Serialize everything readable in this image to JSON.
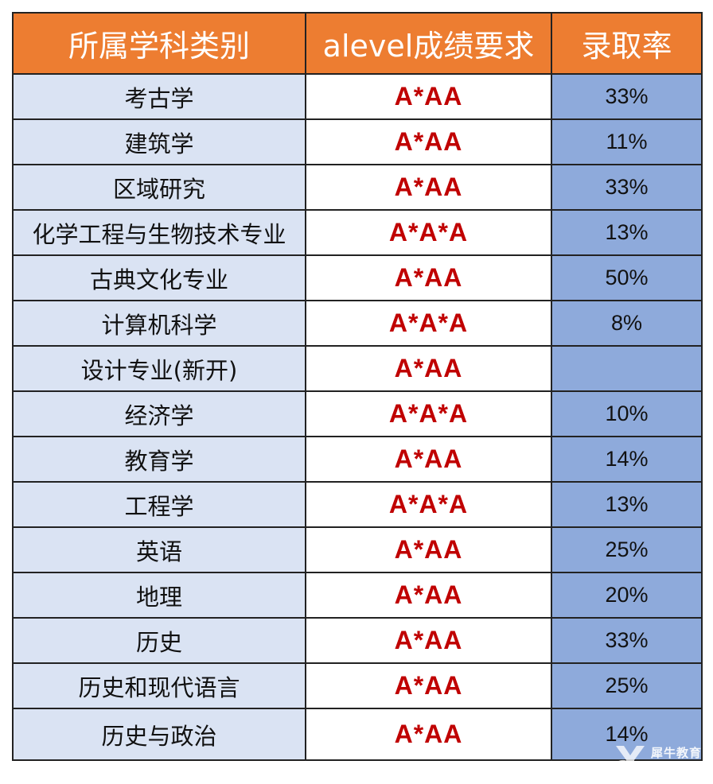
{
  "table": {
    "headers": [
      "所属学科类别",
      "alevel成绩要求",
      "录取率"
    ],
    "rows": [
      {
        "subject": "考古学",
        "grade": "A*AA",
        "rate": "33%"
      },
      {
        "subject": "建筑学",
        "grade": "A*AA",
        "rate": "11%"
      },
      {
        "subject": "区域研究",
        "grade": "A*AA",
        "rate": "33%"
      },
      {
        "subject": "化学工程与生物技术专业",
        "grade": "A*A*A",
        "rate": "13%"
      },
      {
        "subject": "古典文化专业",
        "grade": "A*AA",
        "rate": "50%"
      },
      {
        "subject": "计算机科学",
        "grade": "A*A*A",
        "rate": "8%"
      },
      {
        "subject": "设计专业(新开)",
        "grade": "A*AA",
        "rate": ""
      },
      {
        "subject": "经济学",
        "grade": "A*A*A",
        "rate": "10%"
      },
      {
        "subject": "教育学",
        "grade": "A*AA",
        "rate": "14%"
      },
      {
        "subject": "工程学",
        "grade": "A*A*A",
        "rate": "13%"
      },
      {
        "subject": "英语",
        "grade": "A*AA",
        "rate": "25%"
      },
      {
        "subject": "地理",
        "grade": "A*AA",
        "rate": "20%"
      },
      {
        "subject": "历史",
        "grade": "A*AA",
        "rate": "33%"
      },
      {
        "subject": "历史和现代语言",
        "grade": "A*AA",
        "rate": "25%"
      },
      {
        "subject": "历史与政治",
        "grade": "A*AA",
        "rate": "14%"
      }
    ]
  },
  "watermark": {
    "logo": "犀牛教育",
    "icon": "rhino-logo-icon"
  },
  "colors": {
    "header_bg": "#ed7d31",
    "subject_bg": "#dae3f3",
    "rate_bg": "#8eaadb",
    "grade_text": "#c00000"
  }
}
